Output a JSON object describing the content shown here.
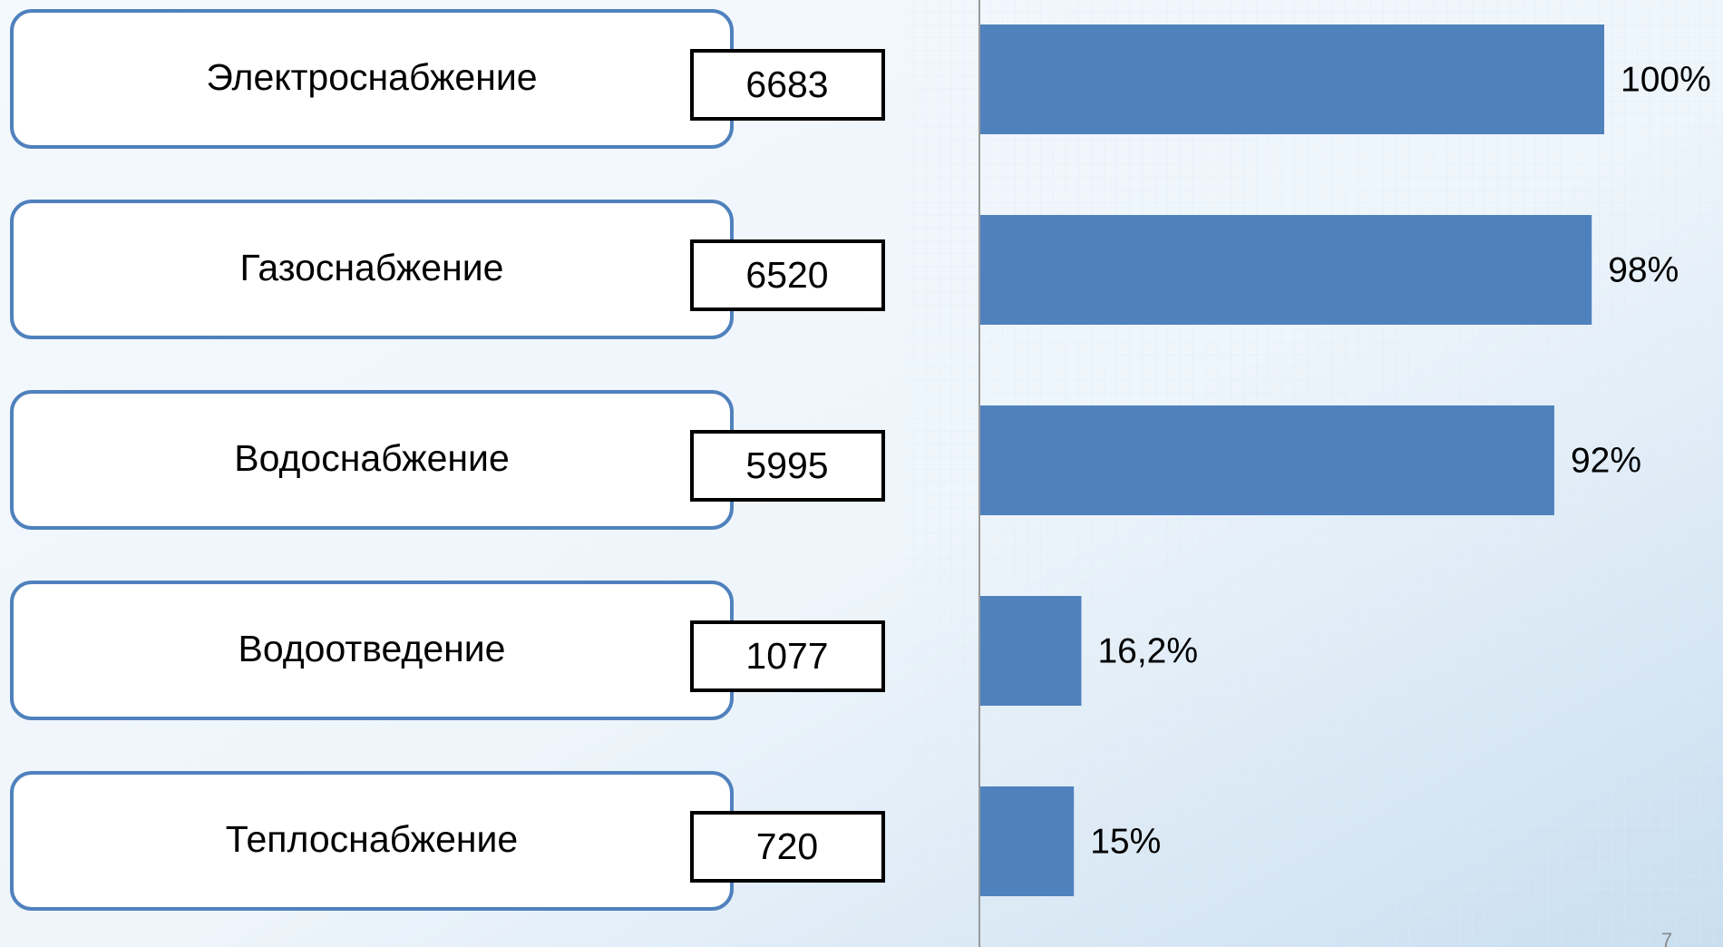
{
  "chart_data": {
    "type": "bar",
    "categories": [
      "Электроснабжение",
      "Газоснабжение",
      "Водоснабжение",
      "Водоотведение",
      "Теплоснабжение"
    ],
    "counts": [
      "6683",
      "6520",
      "5995",
      "1077",
      "720"
    ],
    "values": [
      100,
      98,
      92,
      16.2,
      15
    ],
    "value_labels": [
      "100%",
      "98%",
      "92%",
      "16,2%",
      "15%"
    ],
    "color": "#4f81bd"
  },
  "page_number": "7"
}
